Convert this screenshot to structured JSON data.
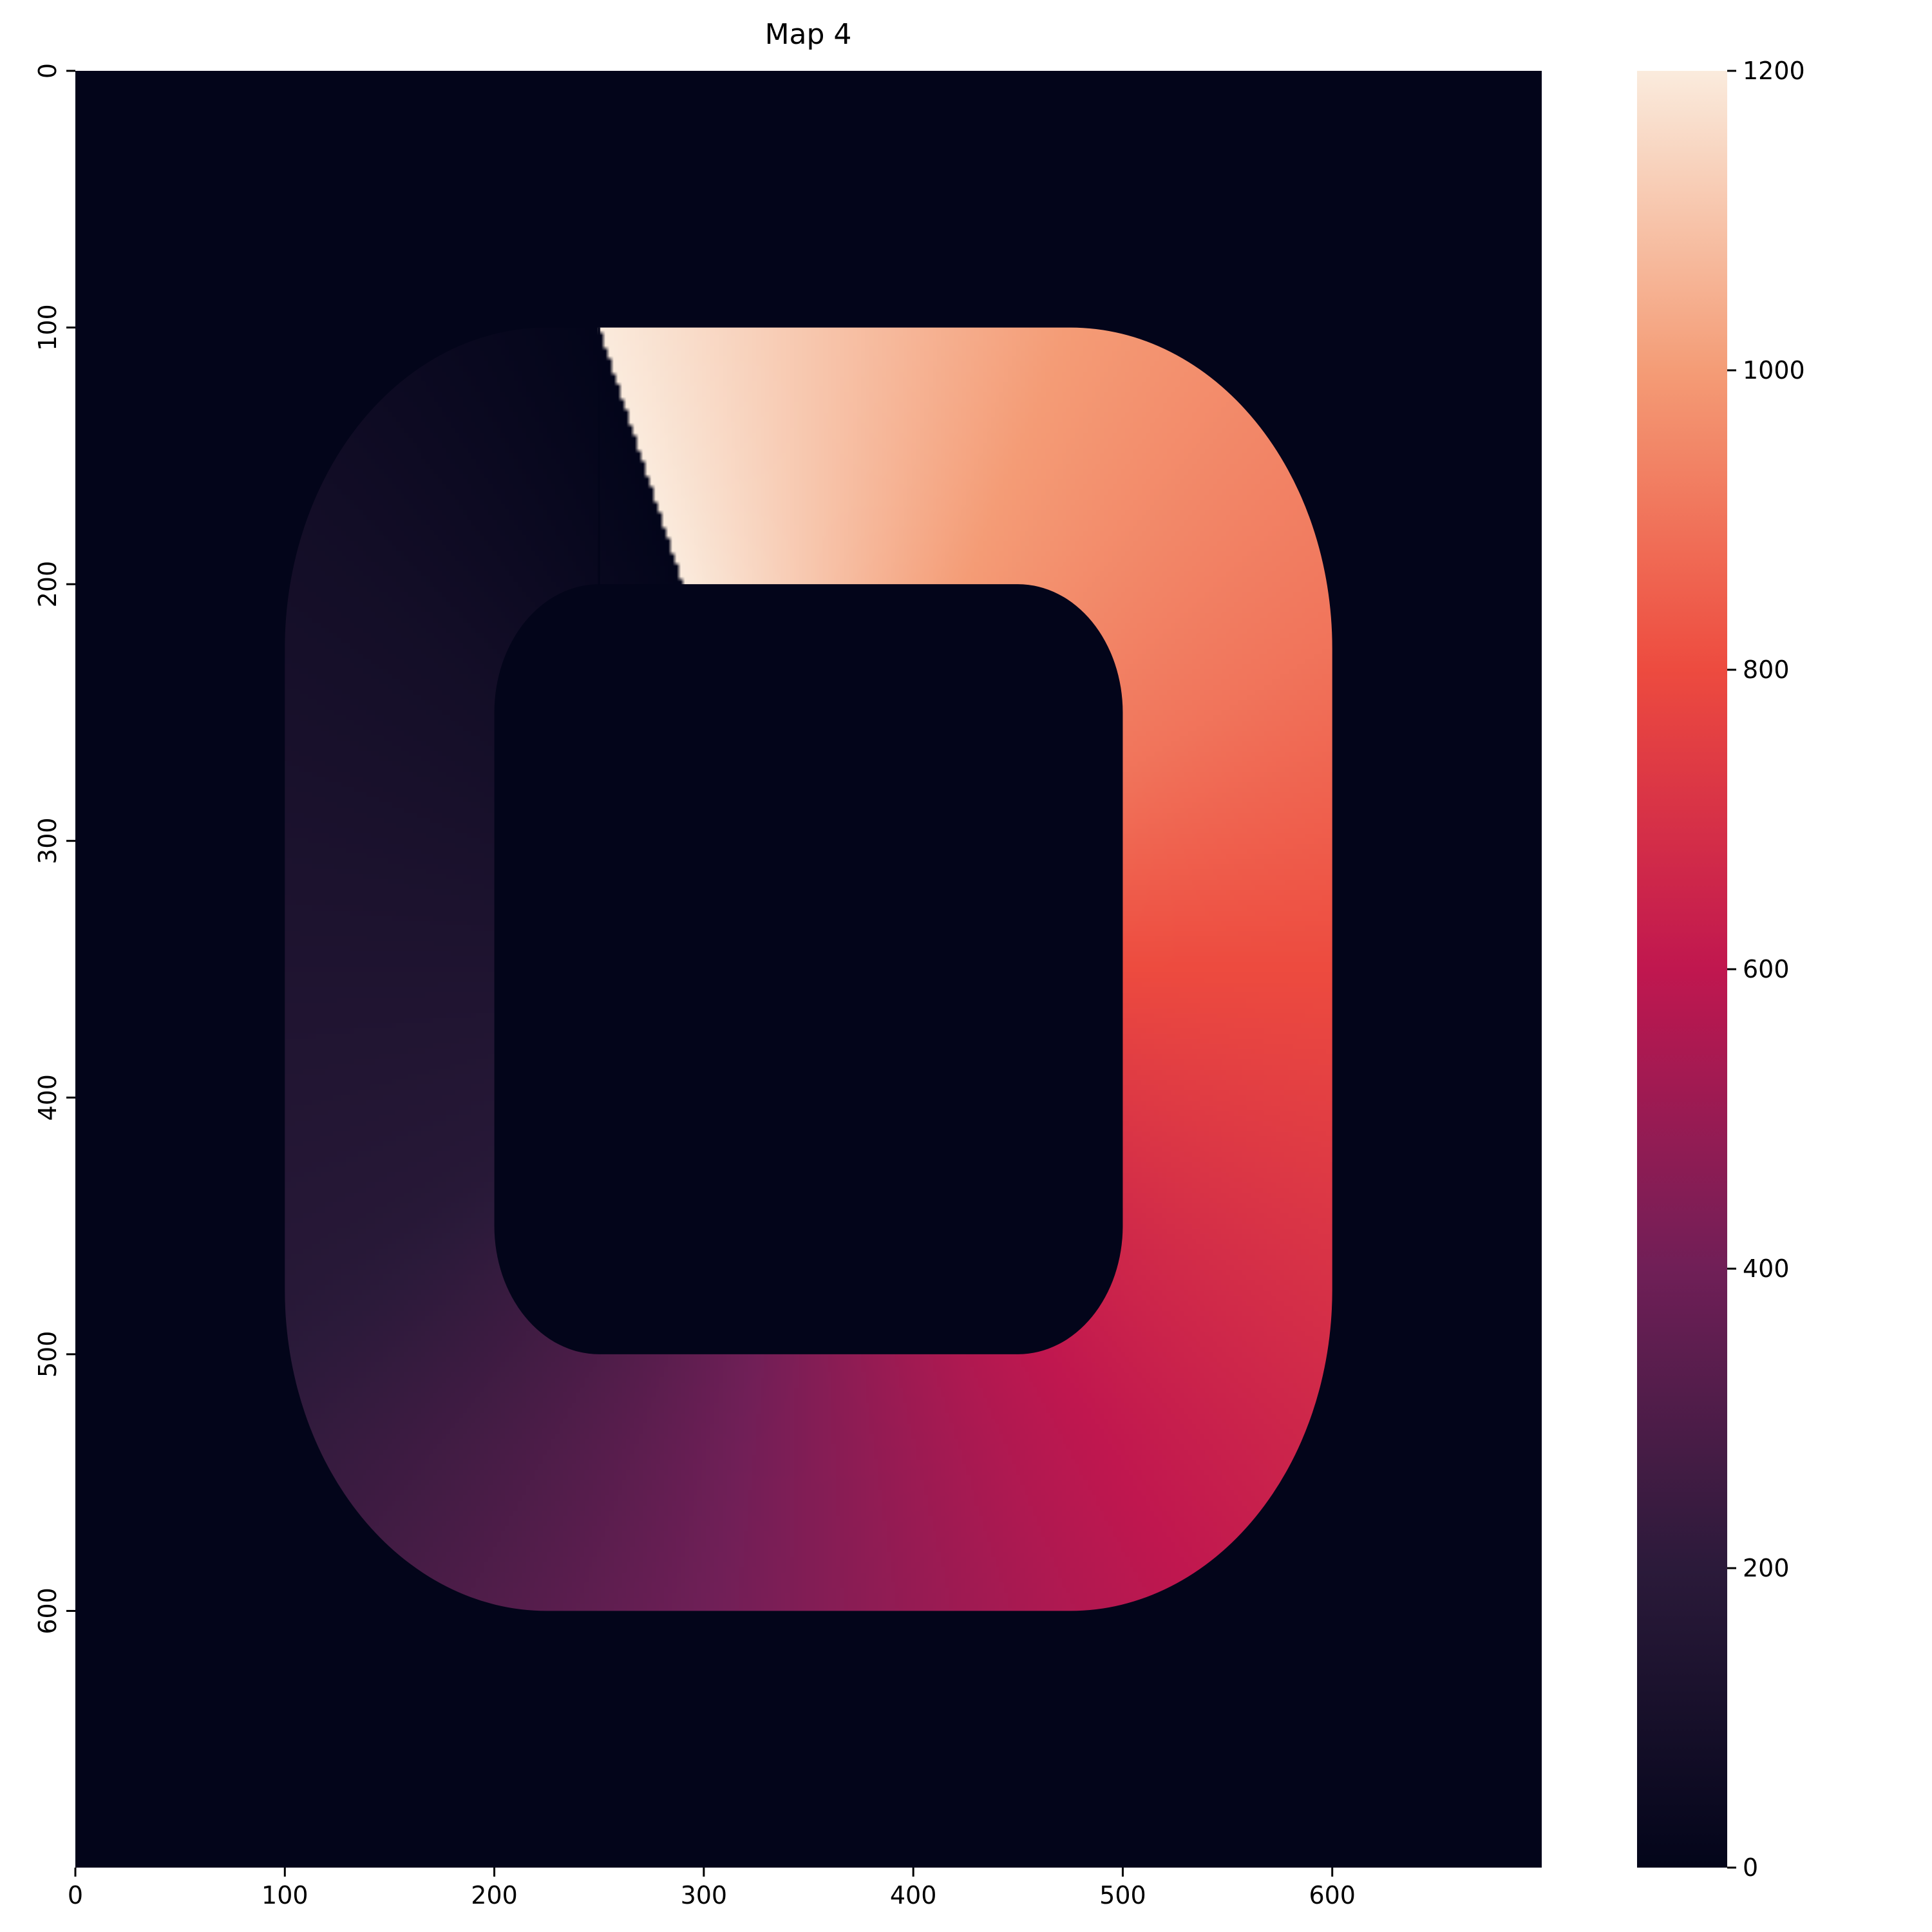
{
  "chart_data": {
    "type": "heatmap",
    "title": "Map 4",
    "xlabel": "",
    "ylabel": "",
    "x_range": [
      0,
      700
    ],
    "y_range": [
      0,
      700
    ],
    "y_inverted": true,
    "x_ticks": [
      "0",
      "100",
      "200",
      "300",
      "400",
      "500",
      "600"
    ],
    "y_ticks": [
      "0",
      "100",
      "200",
      "300",
      "400",
      "500",
      "600"
    ],
    "colorbar": {
      "min": 0,
      "max": 1200,
      "ticks": [
        "0",
        "200",
        "400",
        "600",
        "800",
        "1000",
        "1200"
      ],
      "colormap": "rocket"
    },
    "background_value": 0,
    "track": {
      "shape": "rounded rectangular ring",
      "outer": {
        "x": [
          100,
          600
        ],
        "y": [
          100,
          600
        ]
      },
      "inner": {
        "x": [
          200,
          500
        ],
        "y": [
          200,
          500
        ]
      },
      "start_x": 250,
      "path_values": [
        {
          "x": 250,
          "y": 100,
          "value": 0
        },
        {
          "x": 150,
          "y": 200,
          "value": 80
        },
        {
          "x": 150,
          "y": 450,
          "value": 180
        },
        {
          "x": 250,
          "y": 550,
          "value": 330
        },
        {
          "x": 450,
          "y": 550,
          "value": 560
        },
        {
          "x": 550,
          "y": 450,
          "value": 700
        },
        {
          "x": 550,
          "y": 250,
          "value": 900
        },
        {
          "x": 450,
          "y": 150,
          "value": 1000
        },
        {
          "x": 250,
          "y": 150,
          "value": 1200
        }
      ]
    }
  }
}
